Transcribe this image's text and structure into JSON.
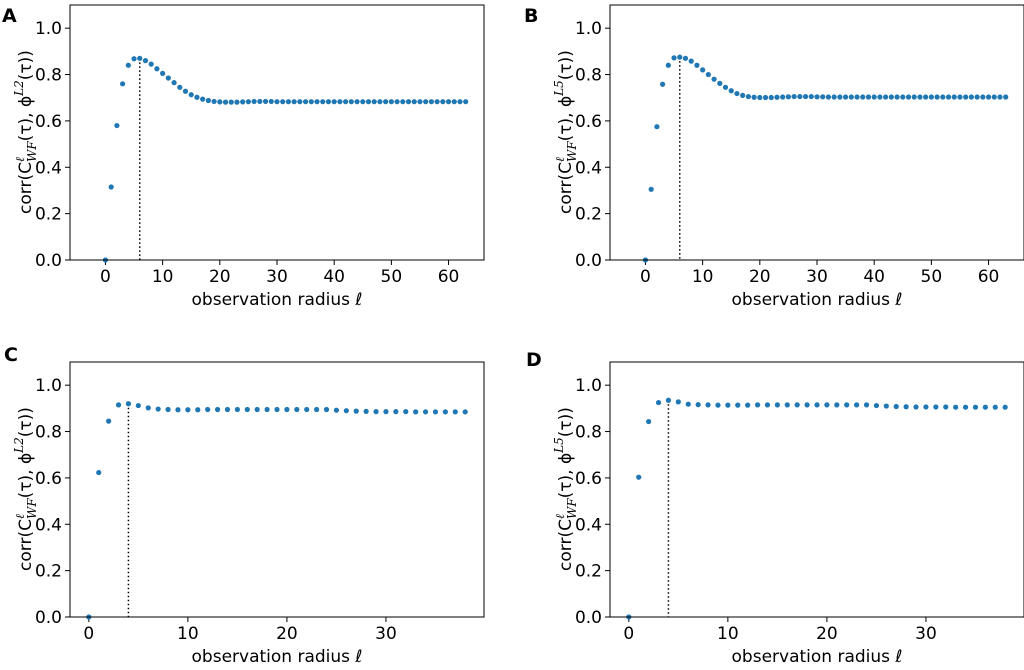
{
  "colors": {
    "marker": "#1f77b4",
    "axis": "#000000",
    "vline": "#000000"
  },
  "chart_data": [
    {
      "panel": "A",
      "type": "scatter",
      "xlabel": "observation radius ℓ",
      "ylabel": {
        "prefix": "corr(C",
        "sup": "ℓ",
        "sub": "WF",
        "mid": "(τ), ϕ",
        "sup2": "L2",
        "suffix": "(τ))"
      },
      "xlim": [
        -6.2,
        66.2
      ],
      "ylim": [
        0,
        1.1
      ],
      "xticks": [
        0,
        10,
        20,
        30,
        40,
        50,
        60
      ],
      "yticks": [
        0.0,
        0.2,
        0.4,
        0.6,
        0.8,
        1.0
      ],
      "xtick_labels": [
        "0",
        "10",
        "20",
        "30",
        "40",
        "50",
        "60"
      ],
      "ytick_labels": [
        "0.0",
        "0.2",
        "0.4",
        "0.6",
        "0.8",
        "1.0"
      ],
      "vline_x": 6,
      "vline_y": 0.87,
      "y": [
        0.0,
        0.315,
        0.58,
        0.76,
        0.84,
        0.868,
        0.87,
        0.86,
        0.845,
        0.825,
        0.805,
        0.785,
        0.765,
        0.745,
        0.728,
        0.713,
        0.702,
        0.694,
        0.688,
        0.684,
        0.682,
        0.681,
        0.681,
        0.681,
        0.682,
        0.683,
        0.684,
        0.684,
        0.684,
        0.684,
        0.683,
        0.683,
        0.683,
        0.683,
        0.683,
        0.683,
        0.683,
        0.683,
        0.683,
        0.683,
        0.683,
        0.683,
        0.683,
        0.683,
        0.683,
        0.683,
        0.683,
        0.683,
        0.683,
        0.683,
        0.683,
        0.683,
        0.683,
        0.683,
        0.683,
        0.683,
        0.683,
        0.683,
        0.683,
        0.683,
        0.683,
        0.683,
        0.683,
        0.683
      ]
    },
    {
      "panel": "B",
      "type": "scatter",
      "xlabel": "observation radius ℓ",
      "ylabel": {
        "prefix": "corr(C",
        "sup": "ℓ",
        "sub": "WF",
        "mid": "(τ), ϕ",
        "sup2": "L5",
        "suffix": "(τ))"
      },
      "xlim": [
        -6.2,
        66.2
      ],
      "ylim": [
        0,
        1.1
      ],
      "xticks": [
        0,
        10,
        20,
        30,
        40,
        50,
        60
      ],
      "yticks": [
        0.0,
        0.2,
        0.4,
        0.6,
        0.8,
        1.0
      ],
      "xtick_labels": [
        "0",
        "10",
        "20",
        "30",
        "40",
        "50",
        "60"
      ],
      "ytick_labels": [
        "0.0",
        "0.2",
        "0.4",
        "0.6",
        "0.8",
        "1.0"
      ],
      "vline_x": 6,
      "vline_y": 0.875,
      "y": [
        0.0,
        0.305,
        0.575,
        0.758,
        0.84,
        0.872,
        0.875,
        0.87,
        0.858,
        0.84,
        0.82,
        0.8,
        0.78,
        0.762,
        0.745,
        0.73,
        0.718,
        0.71,
        0.705,
        0.702,
        0.701,
        0.701,
        0.701,
        0.702,
        0.703,
        0.704,
        0.705,
        0.705,
        0.705,
        0.705,
        0.704,
        0.704,
        0.703,
        0.703,
        0.703,
        0.703,
        0.703,
        0.703,
        0.703,
        0.703,
        0.703,
        0.703,
        0.703,
        0.703,
        0.703,
        0.703,
        0.703,
        0.703,
        0.703,
        0.703,
        0.703,
        0.703,
        0.703,
        0.703,
        0.703,
        0.703,
        0.703,
        0.703,
        0.703,
        0.703,
        0.703,
        0.703,
        0.703,
        0.703
      ]
    },
    {
      "panel": "C",
      "type": "scatter",
      "xlabel": "observation radius ℓ",
      "ylabel": {
        "prefix": "corr(C",
        "sup": "ℓ",
        "sub": "WF",
        "mid": "(τ), ϕ",
        "sup2": "L2",
        "suffix": "(τ))"
      },
      "xlim": [
        -1.9,
        39.9
      ],
      "ylim": [
        0,
        1.1
      ],
      "xticks": [
        0,
        10,
        20,
        30
      ],
      "yticks": [
        0.0,
        0.2,
        0.4,
        0.6,
        0.8,
        1.0
      ],
      "xtick_labels": [
        "0",
        "10",
        "20",
        "30"
      ],
      "ytick_labels": [
        "0.0",
        "0.2",
        "0.4",
        "0.6",
        "0.8",
        "1.0"
      ],
      "vline_x": 4,
      "vline_y": 0.92,
      "y": [
        0.0,
        0.623,
        0.845,
        0.915,
        0.92,
        0.912,
        0.902,
        0.897,
        0.895,
        0.894,
        0.894,
        0.894,
        0.895,
        0.895,
        0.895,
        0.895,
        0.895,
        0.895,
        0.895,
        0.895,
        0.895,
        0.895,
        0.895,
        0.895,
        0.895,
        0.892,
        0.89,
        0.888,
        0.887,
        0.886,
        0.886,
        0.886,
        0.886,
        0.885,
        0.885,
        0.885,
        0.885,
        0.885,
        0.885
      ]
    },
    {
      "panel": "D",
      "type": "scatter",
      "xlabel": "observation radius ℓ",
      "ylabel": {
        "prefix": "corr(C",
        "sup": "ℓ",
        "sub": "WF",
        "mid": "(τ), ϕ",
        "sup2": "L5",
        "suffix": "(τ))"
      },
      "xlim": [
        -1.9,
        39.9
      ],
      "ylim": [
        0,
        1.1
      ],
      "xticks": [
        0,
        10,
        20,
        30
      ],
      "yticks": [
        0.0,
        0.2,
        0.4,
        0.6,
        0.8,
        1.0
      ],
      "xtick_labels": [
        "0",
        "10",
        "20",
        "30"
      ],
      "ytick_labels": [
        "0.0",
        "0.2",
        "0.4",
        "0.6",
        "0.8",
        "1.0"
      ],
      "vline_x": 4,
      "vline_y": 0.935,
      "y": [
        0.0,
        0.603,
        0.843,
        0.925,
        0.935,
        0.928,
        0.918,
        0.916,
        0.915,
        0.914,
        0.914,
        0.914,
        0.914,
        0.915,
        0.915,
        0.915,
        0.915,
        0.915,
        0.915,
        0.915,
        0.915,
        0.915,
        0.915,
        0.915,
        0.915,
        0.912,
        0.91,
        0.908,
        0.907,
        0.906,
        0.906,
        0.906,
        0.906,
        0.905,
        0.905,
        0.905,
        0.905,
        0.905,
        0.905
      ]
    }
  ]
}
